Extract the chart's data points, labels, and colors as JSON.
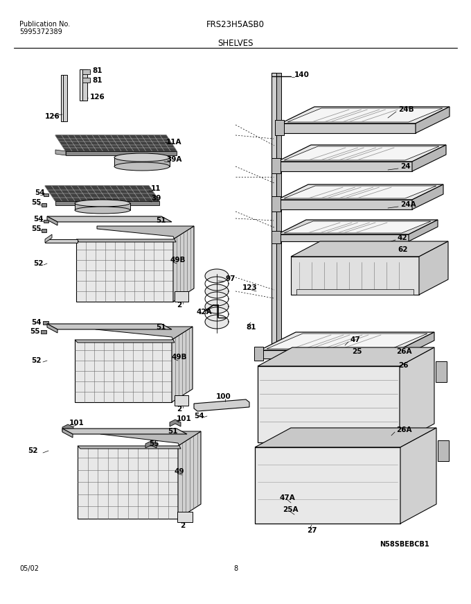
{
  "title": "FRS23H5ASB0",
  "subtitle": "SHELVES",
  "pub_line1": "Publication No.",
  "pub_line2": "5995372389",
  "date": "05/02",
  "page": "8",
  "watermark": "N58SBEBCB1",
  "bg_color": "#ffffff",
  "lc": "#000000",
  "lfs": 6.5,
  "bfs": 7.5,
  "fig_width": 6.8,
  "fig_height": 8.71,
  "dpi": 100
}
